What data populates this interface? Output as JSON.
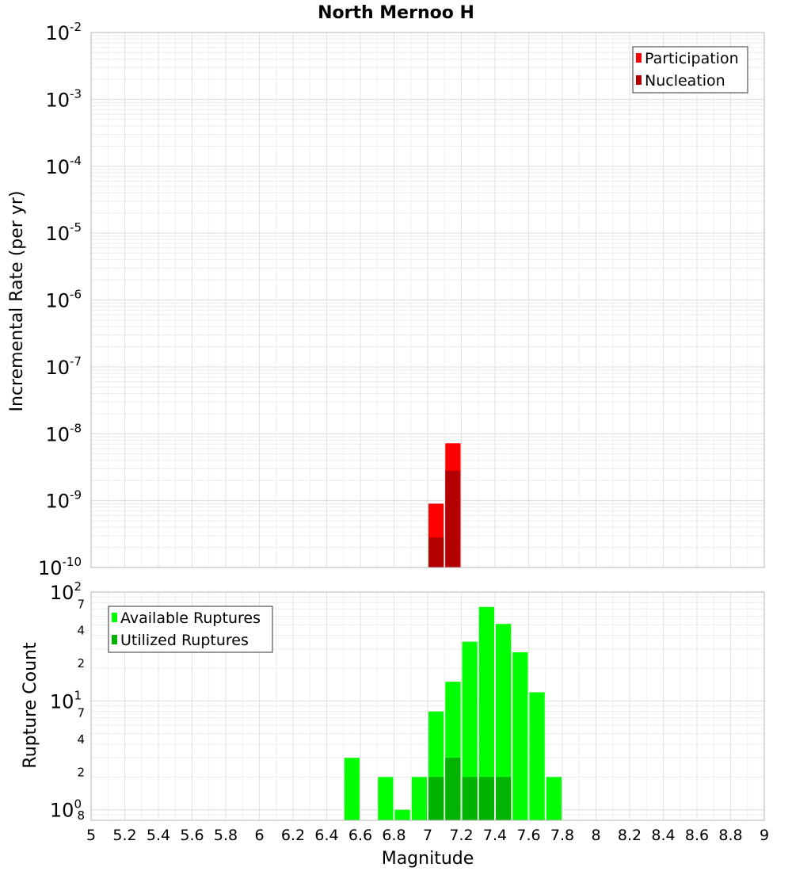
{
  "chart_data": {
    "title": "North Mernoo H",
    "xlabel": "Magnitude",
    "xlim": [
      5,
      9
    ],
    "x_ticks": [
      {
        "value": 5,
        "label": "5"
      },
      {
        "value": 5.2,
        "label": "5.2"
      },
      {
        "value": 5.4,
        "label": "5.4"
      },
      {
        "value": 5.6,
        "label": "5.6"
      },
      {
        "value": 5.8,
        "label": "5.8"
      },
      {
        "value": 6,
        "label": "6"
      },
      {
        "value": 6.2,
        "label": "6.2"
      },
      {
        "value": 6.4,
        "label": "6.4"
      },
      {
        "value": 6.6,
        "label": "6.6"
      },
      {
        "value": 6.8,
        "label": "6.8"
      },
      {
        "value": 7,
        "label": "7"
      },
      {
        "value": 7.2,
        "label": "7.2"
      },
      {
        "value": 7.4,
        "label": "7.4"
      },
      {
        "value": 7.6,
        "label": "7.6"
      },
      {
        "value": 7.8,
        "label": "7.8"
      },
      {
        "value": 8,
        "label": "8"
      },
      {
        "value": 8.2,
        "label": "8.2"
      },
      {
        "value": 8.4,
        "label": "8.4"
      },
      {
        "value": 8.6,
        "label": "8.6"
      },
      {
        "value": 8.8,
        "label": "8.8"
      },
      {
        "value": 9,
        "label": "9"
      }
    ],
    "panels": [
      {
        "id": "rate",
        "type": "bar",
        "ylabel": "Incremental Rate (per yr)",
        "yscale": "log",
        "ylim": [
          1e-10,
          0.01
        ],
        "y_ticks": [
          {
            "value": 0.01,
            "base": "10",
            "exp": "-2"
          },
          {
            "value": 0.001,
            "base": "10",
            "exp": "-3"
          },
          {
            "value": 0.0001,
            "base": "10",
            "exp": "-4"
          },
          {
            "value": 1e-05,
            "base": "10",
            "exp": "-5"
          },
          {
            "value": 1e-06,
            "base": "10",
            "exp": "-6"
          },
          {
            "value": 1e-07,
            "base": "10",
            "exp": "-7"
          },
          {
            "value": 1e-08,
            "base": "10",
            "exp": "-8"
          },
          {
            "value": 1e-09,
            "base": "10",
            "exp": "-9"
          },
          {
            "value": 1e-10,
            "base": "10",
            "exp": "-10"
          }
        ],
        "legend": {
          "position": "top-right",
          "entries": [
            {
              "name": "Participation",
              "color": "#ff0000"
            },
            {
              "name": "Nucleation",
              "color": "#b30000"
            }
          ]
        },
        "bin_width": 0.1,
        "series": [
          {
            "name": "Participation",
            "color": "#ff0000",
            "x": [
              7.05,
              7.15
            ],
            "values": [
              9e-10,
              7.2e-09
            ]
          },
          {
            "name": "Nucleation",
            "color": "#b30000",
            "x": [
              7.05,
              7.15
            ],
            "values": [
              2.8e-10,
              2.8e-09
            ]
          }
        ]
      },
      {
        "id": "count",
        "type": "bar",
        "ylabel": "Rupture Count",
        "yscale": "log",
        "ylim": [
          0.8,
          100
        ],
        "y_ticks": [
          {
            "value": 100,
            "base": "10",
            "exp": "2"
          },
          {
            "value": 10,
            "base": "10",
            "exp": "1"
          },
          {
            "value": 1,
            "base": "10",
            "exp": "0"
          }
        ],
        "y_minor_labels": [
          {
            "value": 70,
            "label": "7"
          },
          {
            "value": 40,
            "label": "4"
          },
          {
            "value": 20,
            "label": "2"
          },
          {
            "value": 7,
            "label": "7"
          },
          {
            "value": 4,
            "label": "4"
          },
          {
            "value": 2,
            "label": "2"
          },
          {
            "value": 0.8,
            "label": "8"
          }
        ],
        "legend": {
          "position": "top-left",
          "entries": [
            {
              "name": "Available Ruptures",
              "color": "#00ff00"
            },
            {
              "name": "Utilized Ruptures",
              "color": "#00b300"
            }
          ]
        },
        "bin_width": 0.1,
        "series": [
          {
            "name": "Available Ruptures",
            "color": "#00ff00",
            "x": [
              6.55,
              6.75,
              6.85,
              6.95,
              7.05,
              7.15,
              7.25,
              7.35,
              7.45,
              7.55,
              7.65,
              7.75
            ],
            "values": [
              3,
              2,
              1,
              2,
              8,
              15,
              35,
              73,
              51,
              28,
              12,
              2
            ]
          },
          {
            "name": "Utilized Ruptures",
            "color": "#00b300",
            "x": [
              7.05,
              7.15,
              7.25,
              7.35,
              7.45
            ],
            "values": [
              2,
              3,
              2,
              2,
              2
            ]
          }
        ]
      }
    ]
  }
}
